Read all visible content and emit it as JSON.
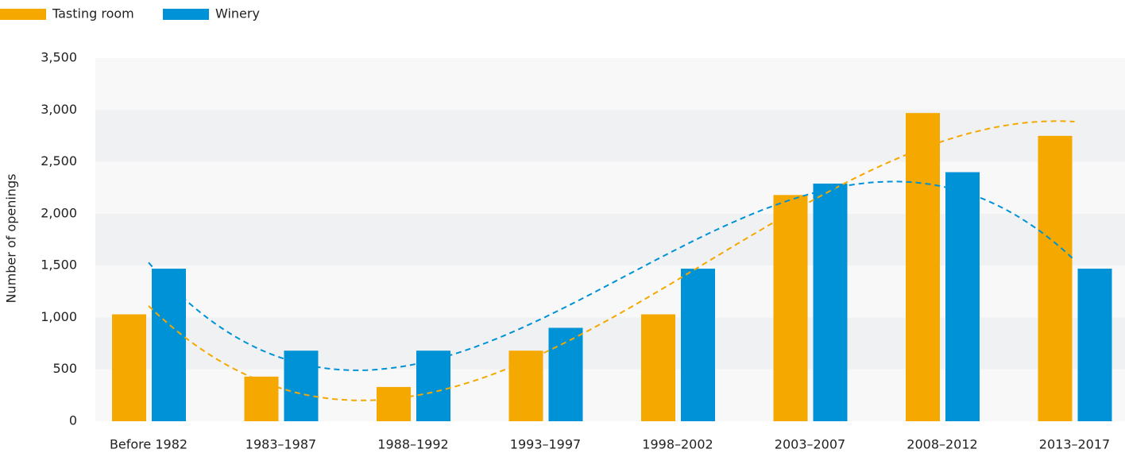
{
  "chart_data": {
    "type": "bar",
    "categories": [
      "Before 1982",
      "1983–1987",
      "1988–1992",
      "1993–1997",
      "1998–2002",
      "2003–2007",
      "2008–2012",
      "2013–2017"
    ],
    "series": [
      {
        "name": "Tasting room",
        "color": "#f5a800",
        "values": [
          1030,
          430,
          330,
          680,
          1030,
          2180,
          2970,
          2750
        ]
      },
      {
        "name": "Winery",
        "color": "#0092d6",
        "values": [
          1470,
          680,
          680,
          900,
          1470,
          2290,
          2400,
          1470
        ]
      }
    ],
    "y_label": "Number of openings",
    "ylim": [
      0,
      3500
    ],
    "yticks": [
      0,
      500,
      {
        "value": 1000,
        "label": "1,000"
      },
      {
        "value": 1500,
        "label": "1,500"
      },
      {
        "value": 2000,
        "label": "2,000"
      },
      {
        "value": 2500,
        "label": "2,500"
      },
      {
        "value": 3000,
        "label": "3,000"
      },
      {
        "value": 3500,
        "label": "3,500"
      }
    ],
    "grid": true,
    "trendline": true,
    "legend": "top-left"
  }
}
